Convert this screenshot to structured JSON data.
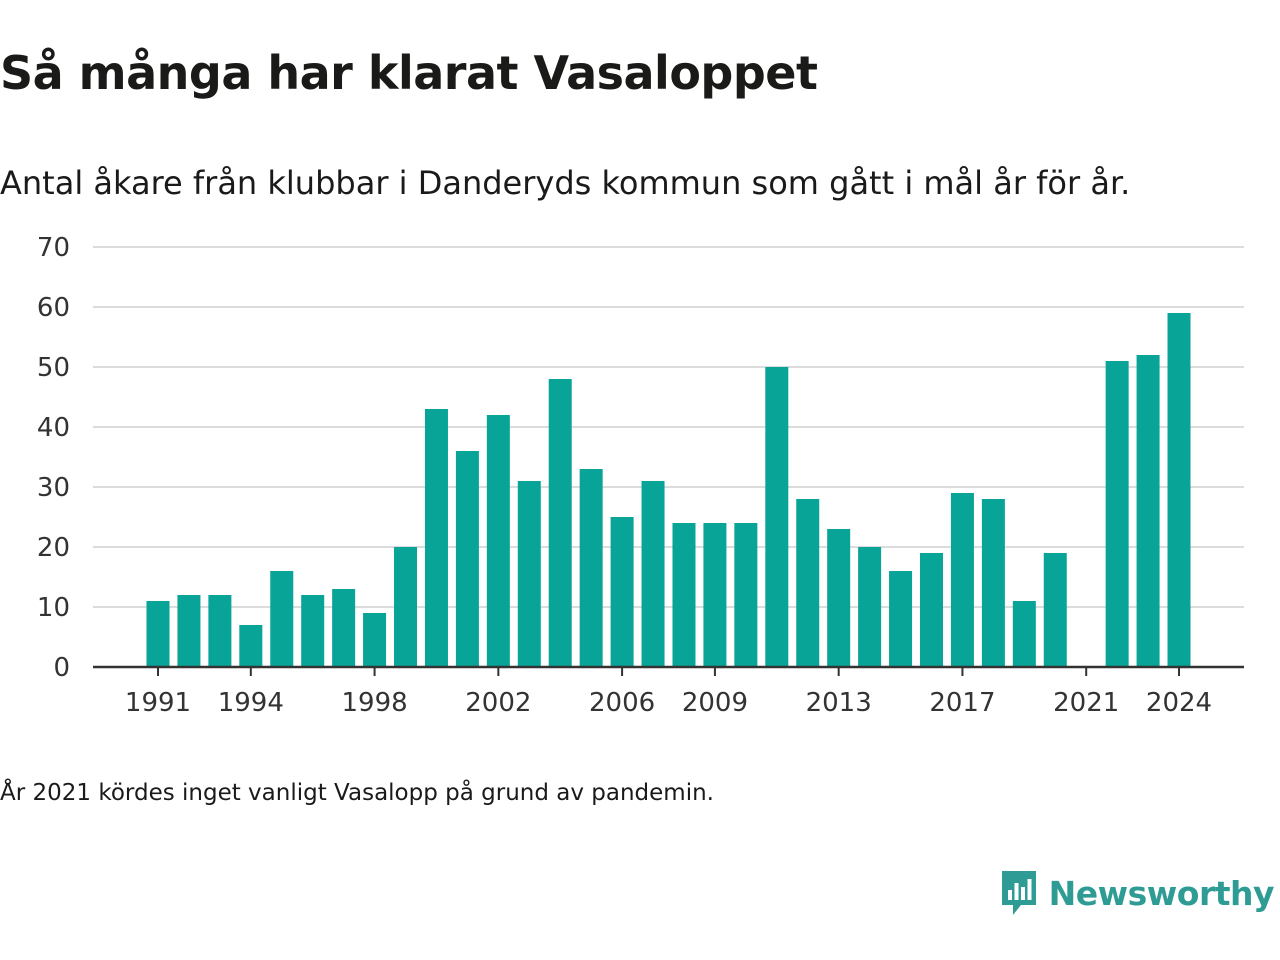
{
  "header": {
    "title": "Så många har klarat Vasaloppet",
    "subtitle": "Antal åkare från klubbar i Danderyds kommun som gått i mål år för år."
  },
  "footnote": "År 2021 kördes inget vanligt Vasalopp på grund av pandemin.",
  "brand": {
    "name": "Newsworthy",
    "icon": "newsworthy-logo-icon",
    "color": "#2e9c94"
  },
  "chart_data": {
    "type": "bar",
    "title": "Så många har klarat Vasaloppet",
    "subtitle": "Antal åkare från klubbar i Danderyds kommun som gått i mål år för år.",
    "xlabel": "",
    "ylabel": "",
    "ylim": [
      0,
      70
    ],
    "yticks": [
      0,
      10,
      20,
      30,
      40,
      50,
      60,
      70
    ],
    "xticks": [
      1991,
      1994,
      1998,
      2002,
      2006,
      2009,
      2013,
      2017,
      2021,
      2024
    ],
    "grid": true,
    "bar_color": "#07a497",
    "categories": [
      1991,
      1992,
      1993,
      1994,
      1995,
      1996,
      1997,
      1998,
      1999,
      2000,
      2001,
      2002,
      2003,
      2004,
      2005,
      2006,
      2007,
      2008,
      2009,
      2010,
      2011,
      2012,
      2013,
      2014,
      2015,
      2016,
      2017,
      2018,
      2019,
      2020,
      2021,
      2022,
      2023,
      2024
    ],
    "values": [
      11,
      12,
      12,
      7,
      16,
      12,
      13,
      9,
      20,
      43,
      36,
      42,
      31,
      48,
      33,
      25,
      31,
      24,
      24,
      24,
      50,
      28,
      23,
      20,
      16,
      19,
      29,
      28,
      11,
      19,
      null,
      51,
      52,
      59
    ]
  }
}
